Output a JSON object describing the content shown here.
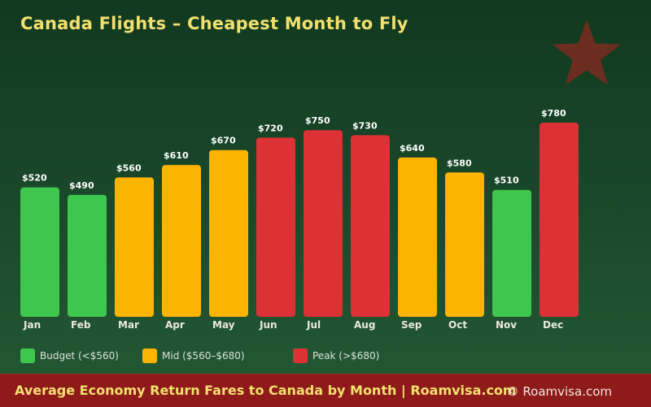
{
  "title": "Canada Flights – Cheapest Month to Fly",
  "legend": [
    {
      "label": "Budget (<$560)",
      "color": "#3ec64e"
    },
    {
      "label": "Mid ($560–$680)",
      "color": "#fdb400"
    },
    {
      "label": "Peak (>$680)",
      "color": "#dc3135"
    }
  ],
  "footer": {
    "text": "Average Economy Return Fares to Canada by Month  |  Roamvisa.com",
    "credit": "© Roamvisa.com"
  },
  "chart_data": {
    "type": "bar",
    "categories": [
      "Jan",
      "Feb",
      "Mar",
      "Apr",
      "May",
      "Jun",
      "Jul",
      "Aug",
      "Sep",
      "Oct",
      "Nov",
      "Dec"
    ],
    "values": [
      520,
      490,
      560,
      610,
      670,
      720,
      750,
      730,
      640,
      580,
      510,
      780
    ],
    "value_labels": [
      "$520",
      "$490",
      "$560",
      "$610",
      "$670",
      "$720",
      "$750",
      "$730",
      "$640",
      "$580",
      "$510",
      "$780"
    ],
    "tiers": [
      "budget",
      "budget",
      "mid",
      "mid",
      "mid",
      "peak",
      "peak",
      "peak",
      "mid",
      "mid",
      "budget",
      "peak"
    ],
    "tier_colors": {
      "budget": "#3ec64e",
      "mid": "#fdb400",
      "peak": "#dc3135"
    },
    "ylim": [
      0,
      780
    ],
    "grid": false,
    "legend_position": "bottom-left"
  }
}
